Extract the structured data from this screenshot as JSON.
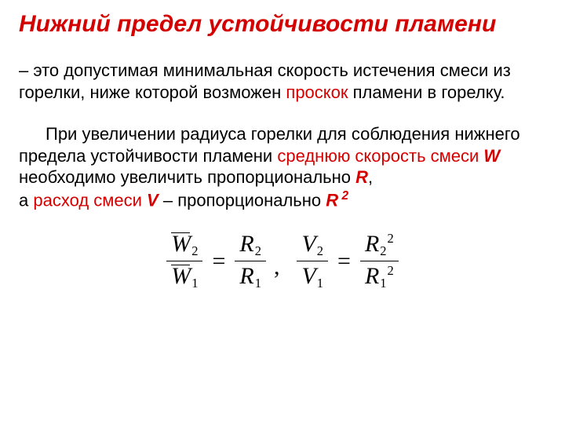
{
  "title": "Нижний предел устойчивости пламени",
  "p1": {
    "a": "– это допустимая минимальная скорость истечения смеси из горелки, ниже которой возможен ",
    "b": "проскок",
    "c": " пламени в горелку."
  },
  "p2": {
    "a": "При увеличении радиуса горелки для соблюдения нижнего предела устойчивости пламени ",
    "b": "среднюю скорость смеси ",
    "w": "W",
    "c": " необходимо увеличить пропорционально ",
    "r": "R",
    "d": ",",
    "e": "а ",
    "f": "расход смеси ",
    "v": "V",
    "g": " – пропорционально ",
    "r2": "R",
    "exp": " 2"
  },
  "formula": {
    "W": "W",
    "R": "R",
    "V": "V",
    "s1": "1",
    "s2": "2",
    "sq": "2",
    "eq": "=",
    "comma": ","
  }
}
